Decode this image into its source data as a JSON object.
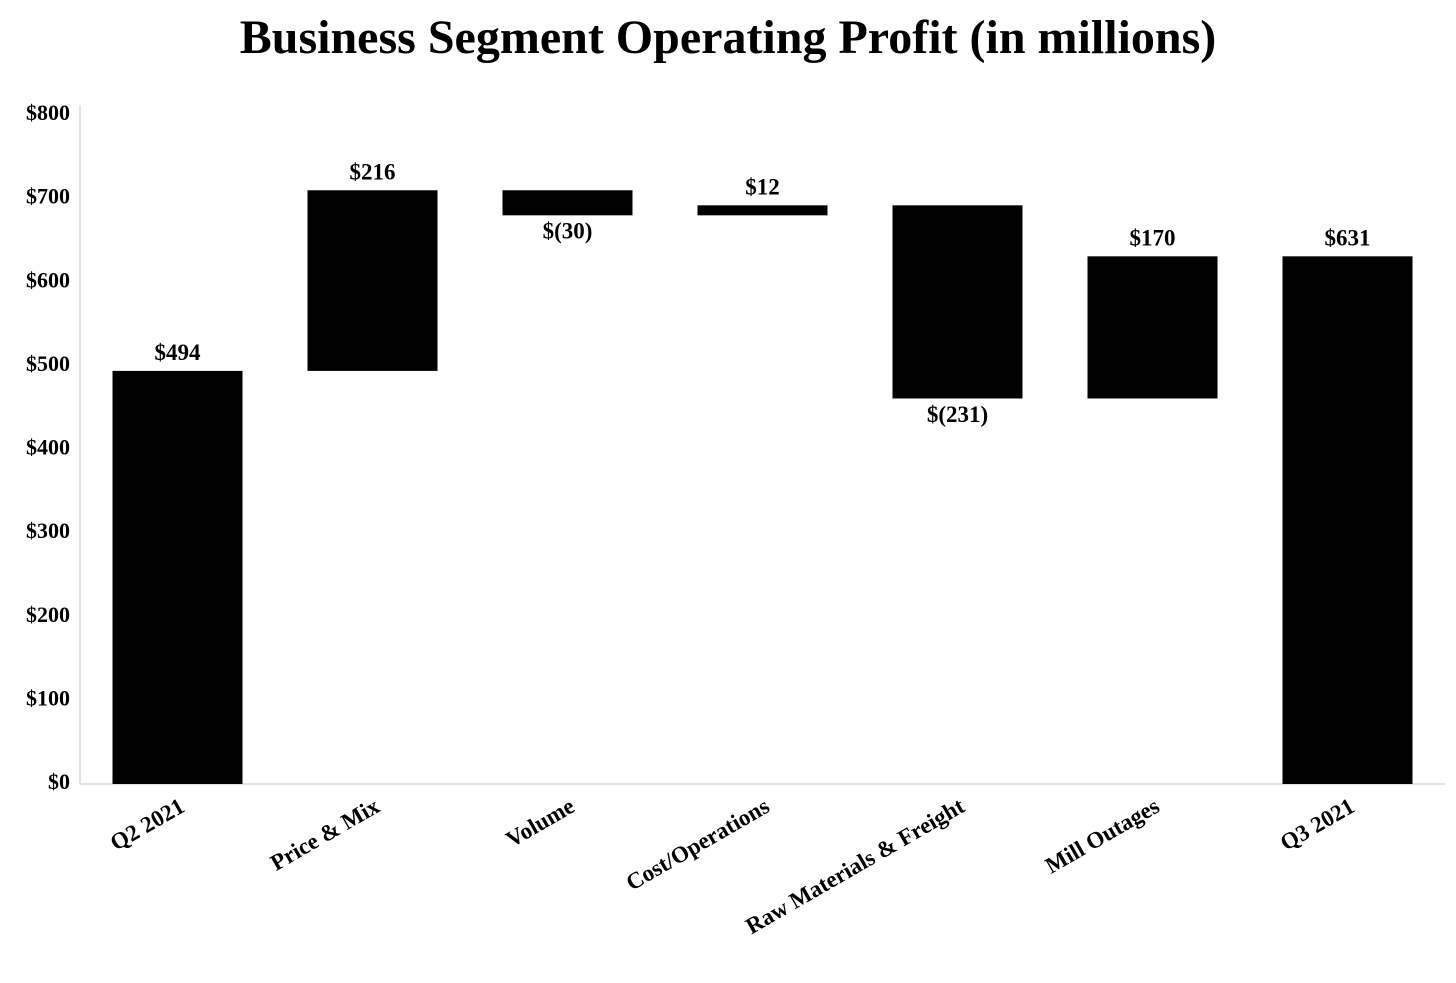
{
  "chart_data": {
    "type": "waterfall",
    "title": "Business Segment Operating Profit (in millions)",
    "categories": [
      "Q2 2021",
      "Price & Mix",
      "Volume",
      "Cost/Operations",
      "Raw Materials & Freight",
      "Mill Outages",
      "Q3 2021"
    ],
    "values": [
      494,
      216,
      -30,
      12,
      -231,
      170,
      631
    ],
    "value_labels": [
      "$494",
      "$216",
      "$(30)",
      "$12",
      "$(231)",
      "$170",
      "$631"
    ],
    "is_total": [
      true,
      false,
      false,
      false,
      false,
      false,
      true
    ],
    "color": "#000000",
    "ylim": [
      0,
      800
    ],
    "yticks": [
      {
        "value": 0,
        "label": "$0"
      },
      {
        "value": 100,
        "label": "$100"
      },
      {
        "value": 200,
        "label": "$200"
      },
      {
        "value": 300,
        "label": "$300"
      },
      {
        "value": 400,
        "label": "$400"
      },
      {
        "value": 500,
        "label": "$500"
      },
      {
        "value": 600,
        "label": "$600"
      },
      {
        "value": 700,
        "label": "$700"
      },
      {
        "value": 800,
        "label": "$800"
      }
    ],
    "grid": false
  }
}
